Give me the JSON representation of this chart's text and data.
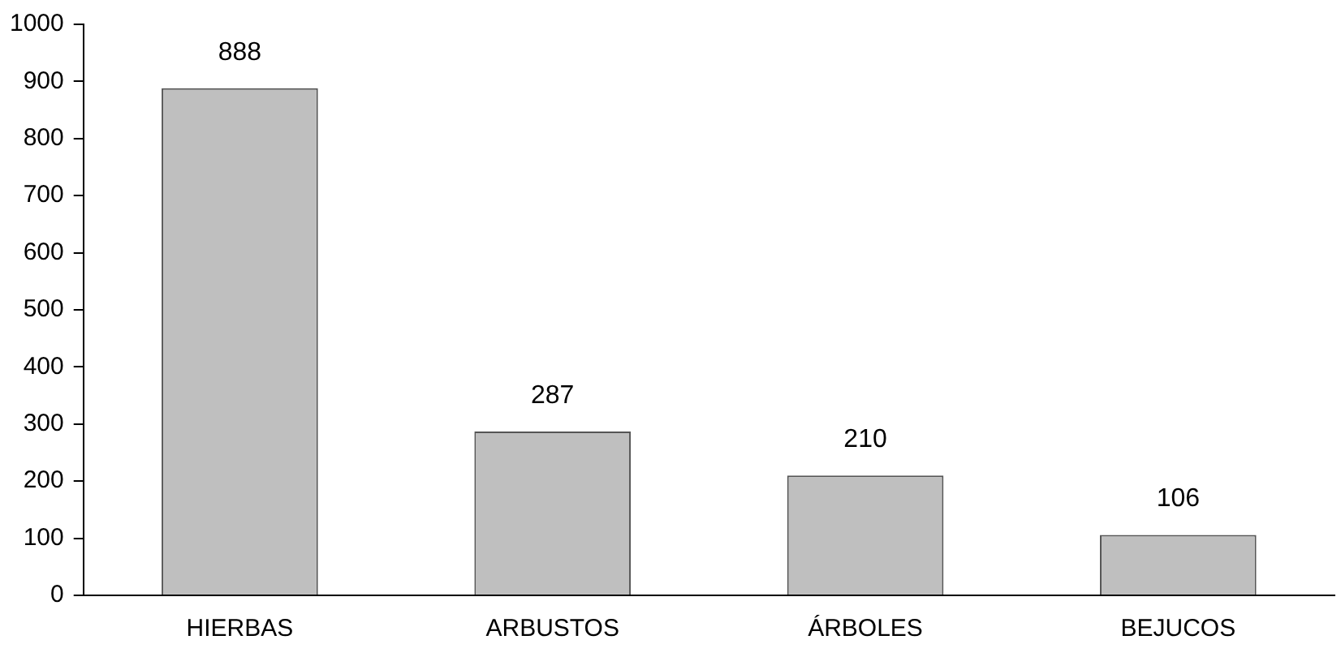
{
  "chart_data": {
    "type": "bar",
    "categories": [
      "HIERBAS",
      "ARBUSTOS",
      "ÁRBOLES",
      "BEJUCOS"
    ],
    "values": [
      888,
      287,
      210,
      106
    ],
    "color": "#bfbfbf",
    "ylim": [
      0,
      1000
    ],
    "yticks": [
      0,
      100,
      200,
      300,
      400,
      500,
      600,
      700,
      800,
      900,
      1000
    ],
    "data_labels": true,
    "grid": false,
    "legend": false
  }
}
